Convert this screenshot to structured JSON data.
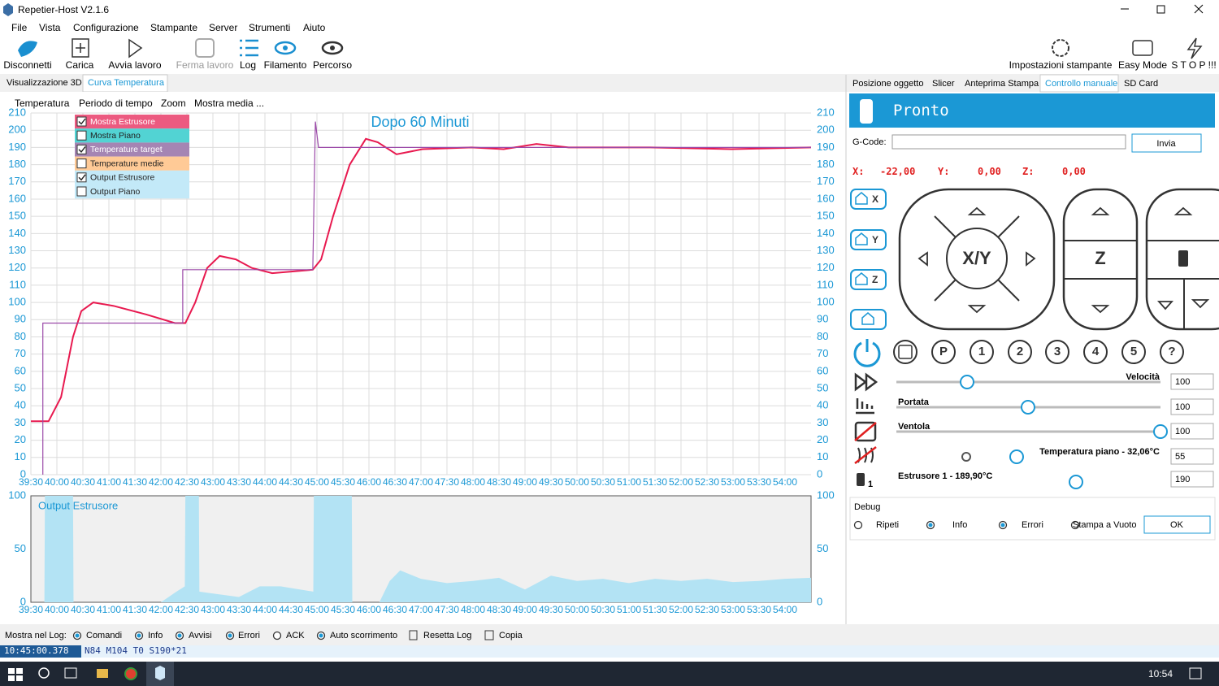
{
  "window": {
    "title": "Repetier-Host V2.1.6"
  },
  "menu": [
    "File",
    "Vista",
    "Configurazione",
    "Stampante",
    "Server",
    "Strumenti",
    "Aiuto"
  ],
  "toolbar": {
    "left": [
      "Disconnetti",
      "Carica",
      "Avvia lavoro",
      "Ferma lavoro",
      "Log",
      "Filamento",
      "Percorso"
    ],
    "right": [
      "Impostazioni stampante",
      "Easy Mode",
      "S T O P !!!"
    ]
  },
  "left_tabs": [
    "Visualizzazione 3D",
    "Curva Temperatura"
  ],
  "chart_menu": [
    "Temperatura",
    "Periodo di tempo",
    "Zoom",
    "Mostra media ..."
  ],
  "chart_data": [
    {
      "type": "line",
      "title": "Dopo 60 Minuti",
      "xlim": [
        39.5,
        54.5
      ],
      "xticks": [
        {
          "value": 39.5,
          "label": "39:30"
        },
        {
          "value": 40,
          "label": "40:00"
        },
        {
          "value": 40.5,
          "label": "40:30"
        },
        {
          "value": 41,
          "label": "41:00"
        },
        {
          "value": 41.5,
          "label": "41:30"
        },
        {
          "value": 42,
          "label": "42:00"
        },
        {
          "value": 42.5,
          "label": "42:30"
        },
        {
          "value": 43,
          "label": "43:00"
        },
        {
          "value": 43.5,
          "label": "43:30"
        },
        {
          "value": 44,
          "label": "44:00"
        },
        {
          "value": 44.5,
          "label": "44:30"
        },
        {
          "value": 45,
          "label": "45:00"
        },
        {
          "value": 45.5,
          "label": "45:30"
        },
        {
          "value": 46,
          "label": "46:00"
        },
        {
          "value": 46.5,
          "label": "46:30"
        },
        {
          "value": 47,
          "label": "47:00"
        },
        {
          "value": 47.5,
          "label": "47:30"
        },
        {
          "value": 48,
          "label": "48:00"
        },
        {
          "value": 48.5,
          "label": "48:30"
        },
        {
          "value": 49,
          "label": "49:00"
        },
        {
          "value": 49.5,
          "label": "49:30"
        },
        {
          "value": 50,
          "label": "50:00"
        },
        {
          "value": 50.5,
          "label": "50:30"
        },
        {
          "value": 51,
          "label": "51:00"
        },
        {
          "value": 51.5,
          "label": "51:30"
        },
        {
          "value": 52,
          "label": "52:00"
        },
        {
          "value": 52.5,
          "label": "52:30"
        },
        {
          "value": 53,
          "label": "53:00"
        },
        {
          "value": 53.5,
          "label": "53:30"
        },
        {
          "value": 54,
          "label": "54:00"
        }
      ],
      "ylim": [
        0,
        210
      ],
      "yticks": [
        0,
        10,
        20,
        30,
        40,
        50,
        60,
        70,
        80,
        90,
        100,
        110,
        120,
        130,
        140,
        150,
        160,
        170,
        180,
        190,
        200,
        210
      ],
      "grid": true,
      "legend_items": [
        {
          "label": "Mostra Estrusore",
          "checked": true,
          "color": "#ec5a80"
        },
        {
          "label": "Mostra Piano",
          "checked": false,
          "color": "#52d3d3"
        },
        {
          "label": "Temperature target",
          "checked": true,
          "color": "#a585b3"
        },
        {
          "label": "Temperature medie",
          "checked": false,
          "color": "#ffca96"
        },
        {
          "label": "Output Estrusore",
          "checked": true,
          "color": "#c3e9f8"
        },
        {
          "label": "Output Piano",
          "checked": false,
          "color": "#c3e9f8"
        }
      ],
      "series": [
        {
          "color": "#e8194f",
          "x": [
            39.5,
            39.84,
            40.08,
            40.31,
            40.47,
            40.7,
            41.09,
            41.72,
            42.27,
            42.47,
            42.66,
            42.89,
            43.13,
            43.44,
            43.75,
            44.14,
            44.53,
            44.92,
            45.08,
            45.31,
            45.63,
            45.94,
            46.17,
            46.53,
            47.03,
            47.97,
            48.59,
            49.22,
            49.84,
            51.41,
            52.97,
            54.5
          ],
          "values": [
            31,
            31,
            45,
            80,
            95,
            100,
            98,
            93,
            88,
            88,
            100,
            120,
            127,
            125,
            120,
            117,
            118,
            119,
            125,
            150,
            180,
            195,
            193,
            186,
            189,
            190,
            189,
            192,
            190,
            190,
            189,
            190
          ]
        },
        {
          "color": "#9b4aa8",
          "x": [
            39.73,
            39.73,
            42.42,
            42.42,
            44.92,
            44.97,
            45.03,
            54.5
          ],
          "values": [
            0,
            88,
            88,
            119,
            119,
            205,
            190,
            190
          ]
        }
      ]
    },
    {
      "type": "area",
      "title": "Output Estrusore",
      "xlim": [
        39.5,
        54.5
      ],
      "xticks": [
        {
          "value": 39.5,
          "label": "39:30"
        },
        {
          "value": 40,
          "label": "40:00"
        },
        {
          "value": 40.5,
          "label": "40:30"
        },
        {
          "value": 41,
          "label": "41:00"
        },
        {
          "value": 41.5,
          "label": "41:30"
        },
        {
          "value": 42,
          "label": "42:00"
        },
        {
          "value": 42.5,
          "label": "42:30"
        },
        {
          "value": 43,
          "label": "43:00"
        },
        {
          "value": 43.5,
          "label": "43:30"
        },
        {
          "value": 44,
          "label": "44:00"
        },
        {
          "value": 44.5,
          "label": "44:30"
        },
        {
          "value": 45,
          "label": "45:00"
        },
        {
          "value": 45.5,
          "label": "45:30"
        },
        {
          "value": 46,
          "label": "46:00"
        },
        {
          "value": 46.5,
          "label": "46:30"
        },
        {
          "value": 47,
          "label": "47:00"
        },
        {
          "value": 47.5,
          "label": "47:30"
        },
        {
          "value": 48,
          "label": "48:00"
        },
        {
          "value": 48.5,
          "label": "48:30"
        },
        {
          "value": 49,
          "label": "49:00"
        },
        {
          "value": 49.5,
          "label": "49:30"
        },
        {
          "value": 50,
          "label": "50:00"
        },
        {
          "value": 50.5,
          "label": "50:30"
        },
        {
          "value": 51,
          "label": "51:00"
        },
        {
          "value": 51.5,
          "label": "51:30"
        },
        {
          "value": 52,
          "label": "52:00"
        },
        {
          "value": 52.5,
          "label": "52:30"
        },
        {
          "value": 53,
          "label": "53:00"
        },
        {
          "value": 53.5,
          "label": "53:30"
        },
        {
          "value": 54,
          "label": "54:00"
        }
      ],
      "ylim": [
        0,
        100
      ],
      "yticks": [
        0,
        50,
        100
      ],
      "grid": false,
      "series": [
        {
          "color": "#b3e3f4",
          "x": [
            39.5,
            39.76,
            39.77,
            40.31,
            40.32,
            42.0,
            42.3,
            42.46,
            42.47,
            42.73,
            42.74,
            43.5,
            43.9,
            44.3,
            44.93,
            44.94,
            45.67,
            45.68,
            46.2,
            46.4,
            46.6,
            47.0,
            47.5,
            48.0,
            48.5,
            49.0,
            49.5,
            50.0,
            50.5,
            51.0,
            51.5,
            52.0,
            52.5,
            53.0,
            53.5,
            54.0,
            54.5
          ],
          "values": [
            0,
            0,
            100,
            100,
            0,
            0,
            10,
            15,
            100,
            100,
            10,
            5,
            15,
            15,
            10,
            100,
            100,
            0,
            0,
            20,
            30,
            22,
            18,
            20,
            23,
            12,
            25,
            20,
            22,
            18,
            22,
            20,
            22,
            19,
            20,
            22,
            23
          ]
        }
      ]
    }
  ],
  "right_tabs": [
    "Posizione oggetto",
    "Slicer",
    "Anteprima Stampa",
    "Controllo manuale",
    "SD Card"
  ],
  "status": "Pronto",
  "gcode": {
    "label": "G-Code:",
    "button": "Invia"
  },
  "coordinates": [
    {
      "axis": "X:",
      "value": "-22,00"
    },
    {
      "axis": "Y:",
      "value": "0,00"
    },
    {
      "axis": "Z:",
      "value": "0,00"
    }
  ],
  "home_buttons": [
    "X",
    "Y",
    "Z"
  ],
  "jog": {
    "xy": "X/Y",
    "z": "Z"
  },
  "extruder_buttons": [
    "P",
    "1",
    "2",
    "3",
    "4",
    "5",
    "?"
  ],
  "sliders": [
    {
      "label": "Velocità",
      "value": 100
    },
    {
      "label": "Portata",
      "value": 100
    },
    {
      "label": "Ventola",
      "value": 100
    },
    {
      "label": "Temperatura piano - 32,06°C",
      "value": 55
    },
    {
      "label": "Estrusore 1 - 189,90°C",
      "value": 190
    }
  ],
  "extruder_icon_label": "1",
  "debug": {
    "title": "Debug",
    "options": [
      "Ripeti",
      "Info",
      "Errori",
      "Stampa a Vuoto"
    ],
    "button": "OK"
  },
  "log_bar": {
    "label": "Mostra nel Log:",
    "options": [
      "Comandi",
      "Info",
      "Avvisi",
      "Errori",
      "ACK",
      "Auto scorrimento"
    ],
    "buttons": [
      "Resetta Log",
      "Copia"
    ]
  },
  "log": {
    "time": "10:45:00.378",
    "line": "N84 M104 T0 S190*21"
  },
  "taskbar": {
    "clock": "10:54"
  }
}
